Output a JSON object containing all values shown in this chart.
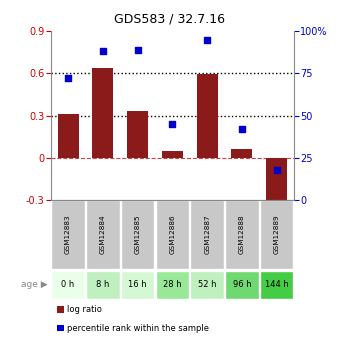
{
  "title": "GDS583 / 32.7.16",
  "samples": [
    "GSM12883",
    "GSM12884",
    "GSM12885",
    "GSM12886",
    "GSM12887",
    "GSM12888",
    "GSM12889"
  ],
  "ages": [
    "0 h",
    "8 h",
    "16 h",
    "28 h",
    "52 h",
    "96 h",
    "144 h"
  ],
  "log_ratio": [
    0.31,
    0.635,
    0.335,
    0.05,
    0.595,
    0.06,
    -0.38
  ],
  "percentile_rank": [
    72,
    88,
    89,
    45,
    95,
    42,
    18
  ],
  "ylim_left": [
    -0.3,
    0.9
  ],
  "ylim_right": [
    0,
    100
  ],
  "yticks_left": [
    -0.3,
    0.0,
    0.3,
    0.6,
    0.9
  ],
  "yticks_right": [
    0,
    25,
    50,
    75,
    100
  ],
  "hlines": [
    0.3,
    0.6
  ],
  "bar_color": "#8B1A1A",
  "dot_color": "#0000CC",
  "zero_line_color": "#CC4444",
  "dotted_line_color": "#000000",
  "age_colors": [
    "#e8ffe8",
    "#b8f0b8",
    "#d0f8d0",
    "#90e890",
    "#b0f0b0",
    "#70e070",
    "#40d040"
  ],
  "sample_bg_color": "#c8c8c8",
  "legend_red_label": "log ratio",
  "legend_blue_label": "percentile rank within the sample",
  "age_label": "age"
}
